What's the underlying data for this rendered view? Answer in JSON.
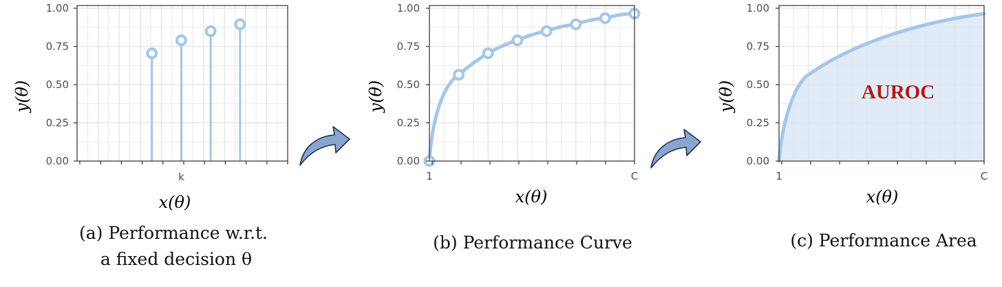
{
  "colors": {
    "series": "#a5c6e8",
    "area_fill": "#dbe8f6",
    "grid": "#e3e3e3",
    "panel_border": "#333333",
    "auroc_text": "#b01b1b",
    "arrow_fill": "#8aa4cf",
    "arrow_stroke": "#1f2f4f"
  },
  "icons": [
    "curved-arrow-icon",
    "curved-arrow-icon"
  ],
  "chart_data": [
    {
      "type": "scatter",
      "variant": "lollipop",
      "xlabel": "x(θ)",
      "ylabel": "y(θ)",
      "ylim": [
        0,
        1
      ],
      "yticks": [
        "0.00",
        "0.25",
        "0.50",
        "0.75",
        "1.00"
      ],
      "xtick_labels": [
        {
          "x": 4,
          "label": "k"
        }
      ],
      "xlim": [
        0,
        10
      ],
      "grid": true,
      "points": [
        {
          "x": 3,
          "y": 0.705
        },
        {
          "x": 4,
          "y": 0.79
        },
        {
          "x": 5,
          "y": 0.85
        },
        {
          "x": 6,
          "y": 0.895
        }
      ],
      "caption_line1": "(a)  Performance w.r.t.",
      "caption_line2": "a fixed decision θ"
    },
    {
      "type": "line",
      "xlabel": "x(θ)",
      "ylabel": "y(θ)",
      "ylim": [
        0,
        1
      ],
      "yticks": [
        "0.00",
        "0.25",
        "0.50",
        "0.75",
        "1.00"
      ],
      "xtick_labels": [
        {
          "x": 0,
          "label": "1"
        },
        {
          "x": 1,
          "label": "C"
        }
      ],
      "xlim": [
        0,
        1
      ],
      "grid": true,
      "points": [
        {
          "x": 0.0,
          "y": 0.0
        },
        {
          "x": 0.143,
          "y": 0.565
        },
        {
          "x": 0.286,
          "y": 0.705
        },
        {
          "x": 0.429,
          "y": 0.79
        },
        {
          "x": 0.571,
          "y": 0.85
        },
        {
          "x": 0.714,
          "y": 0.895
        },
        {
          "x": 0.857,
          "y": 0.935
        },
        {
          "x": 1.0,
          "y": 0.965
        }
      ],
      "caption": "(b) Performance Curve"
    },
    {
      "type": "area",
      "xlabel": "x(θ)",
      "ylabel": "y(θ)",
      "ylim": [
        0,
        1
      ],
      "yticks": [
        "0.00",
        "0.25",
        "0.50",
        "0.75",
        "1.00"
      ],
      "xtick_labels": [
        {
          "x": 0,
          "label": "1"
        },
        {
          "x": 1,
          "label": "C"
        }
      ],
      "xlim": [
        0,
        1
      ],
      "grid": true,
      "annotation": "AUROC",
      "caption": "(c) Performance Area"
    }
  ]
}
